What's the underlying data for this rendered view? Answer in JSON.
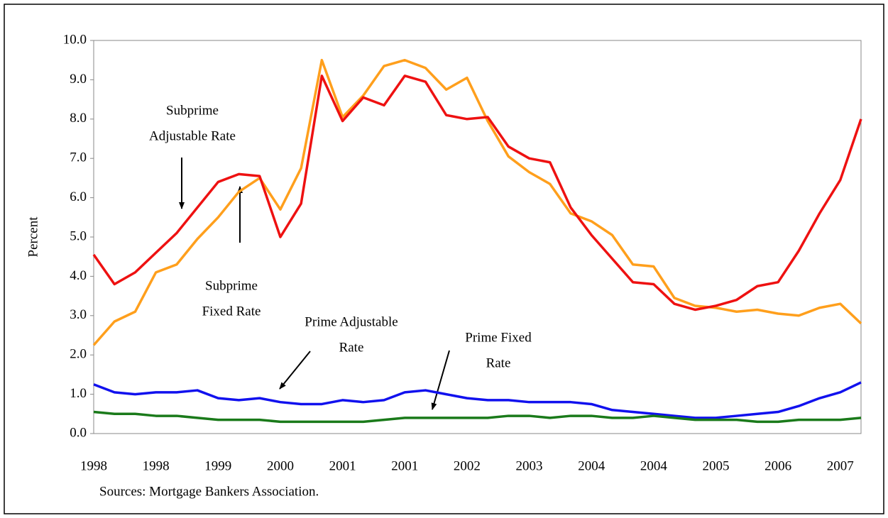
{
  "chart_data": {
    "type": "line",
    "ylabel": "Percent",
    "source": "Sources:  Mortgage Bankers Association.",
    "categories": [
      "1998",
      null,
      null,
      "1998",
      null,
      null,
      "1999",
      null,
      null,
      "2000",
      null,
      null,
      "2001",
      null,
      null,
      "2001",
      null,
      null,
      "2002",
      null,
      null,
      "2003",
      null,
      null,
      "2004",
      null,
      null,
      "2004",
      null,
      null,
      "2005",
      null,
      null,
      "2006",
      null,
      null,
      "2007",
      null
    ],
    "ylim": [
      0,
      10
    ],
    "yticks": [
      {
        "value": 0,
        "label": "0.0"
      },
      {
        "value": 1,
        "label": "1.0"
      },
      {
        "value": 2,
        "label": "2.0"
      },
      {
        "value": 3,
        "label": "3.0"
      },
      {
        "value": 4,
        "label": "4.0"
      },
      {
        "value": 5,
        "label": "5.0"
      },
      {
        "value": 6,
        "label": "6.0"
      },
      {
        "value": 7,
        "label": "7.0"
      },
      {
        "value": 8,
        "label": "8.0"
      },
      {
        "value": 9,
        "label": "9.0"
      },
      {
        "value": 10,
        "label": "10.0"
      }
    ],
    "grid": false,
    "series": [
      {
        "color": "#ff9f1c",
        "values": [
          2.25,
          2.85,
          3.1,
          4.1,
          4.3,
          4.95,
          5.5,
          6.15,
          6.5,
          5.7,
          6.75,
          9.5,
          8.05,
          8.6,
          9.35,
          9.5,
          9.3,
          8.75,
          9.05,
          7.95,
          7.05,
          6.65,
          6.35,
          5.6,
          5.4,
          5.05,
          4.3,
          4.25,
          3.45,
          3.25,
          3.2,
          3.1,
          3.15,
          3.05,
          3.0,
          3.2,
          3.3,
          2.8
        ]
      },
      {
        "color": "#ee1111",
        "values": [
          4.55,
          3.8,
          4.1,
          4.6,
          5.1,
          5.75,
          6.4,
          6.6,
          6.55,
          5.0,
          5.85,
          9.1,
          7.95,
          8.55,
          8.35,
          9.1,
          8.95,
          8.1,
          8.0,
          8.05,
          7.3,
          7.0,
          6.9,
          5.75,
          5.05,
          4.45,
          3.85,
          3.8,
          3.3,
          3.15,
          3.25,
          3.4,
          3.75,
          3.85,
          4.65,
          5.6,
          6.45,
          8.0
        ]
      },
      {
        "color": "#1111ee",
        "values": [
          1.25,
          1.05,
          1.0,
          1.05,
          1.05,
          1.1,
          0.9,
          0.85,
          0.9,
          0.8,
          0.75,
          0.75,
          0.85,
          0.8,
          0.85,
          1.05,
          1.1,
          1.0,
          0.9,
          0.85,
          0.85,
          0.8,
          0.8,
          0.8,
          0.75,
          0.6,
          0.55,
          0.5,
          0.45,
          0.4,
          0.4,
          0.45,
          0.5,
          0.55,
          0.7,
          0.9,
          1.05,
          1.3
        ]
      },
      {
        "color": "#1a7a1a",
        "values": [
          0.55,
          0.5,
          0.5,
          0.45,
          0.45,
          0.4,
          0.35,
          0.35,
          0.35,
          0.3,
          0.3,
          0.3,
          0.3,
          0.3,
          0.35,
          0.4,
          0.4,
          0.4,
          0.4,
          0.4,
          0.45,
          0.45,
          0.4,
          0.45,
          0.45,
          0.4,
          0.4,
          0.45,
          0.4,
          0.35,
          0.35,
          0.35,
          0.3,
          0.3,
          0.35,
          0.35,
          0.35,
          0.4
        ]
      }
    ],
    "annotations": [
      {
        "lines": [
          "Subprime",
          "Adjustable Rate"
        ]
      },
      {
        "lines": [
          "Subprime",
          "Fixed Rate"
        ]
      },
      {
        "lines": [
          "Prime Adjustable",
          "Rate"
        ]
      },
      {
        "lines": [
          "Prime Fixed",
          "Rate"
        ]
      }
    ]
  }
}
